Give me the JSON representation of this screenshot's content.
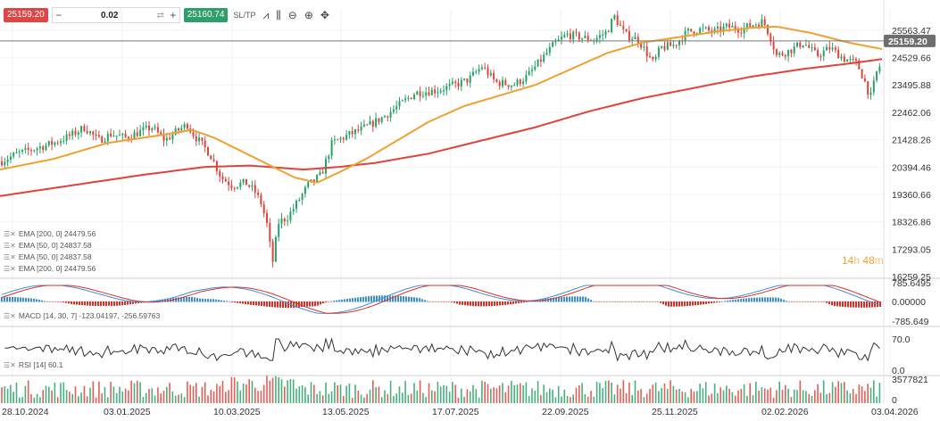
{
  "toolbar": {
    "sell_price": "25159.20",
    "buy_price": "25160.74",
    "quantity": "0.02",
    "minus": "−",
    "plus": "+",
    "swap": "⇄",
    "sltp_label": "SL/TP",
    "icons": [
      "line-chart-icon",
      "candles-icon",
      "zoom-out-icon",
      "zoom-in-icon",
      "crosshair-icon"
    ]
  },
  "indicators": {
    "main": [
      "EMA [200, 0] 24479.56",
      "EMA [50, 0] 24837.58",
      "EMA [50, 0] 24837.58",
      "EMA [200, 0] 24479.56"
    ],
    "macd": "MACD [14, 30, 7] -123.04197, -256.59763",
    "rsi": "RSI [14] 60.1"
  },
  "countdown": {
    "hours": "14",
    "h": "h",
    "minutes": "48",
    "m": "m"
  },
  "colors": {
    "up": "#26a269",
    "down": "#e0433a",
    "ema50": "#f0a030",
    "ema200": "#e0433a",
    "macd_pos": "#3d8fd1",
    "macd_neg": "#d93025",
    "rsi": "#333333",
    "price_tag": "#6e6e6e"
  },
  "chart_data": {
    "type": "candlestick",
    "symbol_price": "25159.20",
    "x_ticks": [
      "28.10.2024",
      "03.01.2025",
      "10.03.2025",
      "13.05.2025",
      "17.07.2025",
      "22.09.2025",
      "25.11.2025",
      "02.02.2026",
      "03.04.2026"
    ],
    "y_ticks": [
      "25563.47",
      "24529.66",
      "23495.88",
      "22462.06",
      "21428.26",
      "20394.46",
      "19360.66",
      "18326.86",
      "17293.05",
      "16259.25"
    ],
    "ylim": [
      16259.25,
      26200
    ],
    "price_anchor_points": [
      [
        0,
        20600
      ],
      [
        20,
        20900
      ],
      [
        40,
        21100
      ],
      [
        60,
        21300
      ],
      [
        80,
        21600
      ],
      [
        95,
        21900
      ],
      [
        110,
        21400
      ],
      [
        125,
        21650
      ],
      [
        140,
        21500
      ],
      [
        155,
        21700
      ],
      [
        170,
        21900
      ],
      [
        185,
        21400
      ],
      [
        200,
        21800
      ],
      [
        210,
        22000
      ],
      [
        215,
        21700
      ],
      [
        225,
        21300
      ],
      [
        235,
        20900
      ],
      [
        248,
        20000
      ],
      [
        260,
        19700
      ],
      [
        275,
        19800
      ],
      [
        285,
        19500
      ],
      [
        293,
        19000
      ],
      [
        300,
        18100
      ],
      [
        305,
        16700
      ],
      [
        312,
        18300
      ],
      [
        322,
        18500
      ],
      [
        332,
        19000
      ],
      [
        345,
        19700
      ],
      [
        360,
        20100
      ],
      [
        372,
        21300
      ],
      [
        390,
        21600
      ],
      [
        410,
        21900
      ],
      [
        430,
        22300
      ],
      [
        450,
        22800
      ],
      [
        465,
        23200
      ],
      [
        490,
        23300
      ],
      [
        510,
        23500
      ],
      [
        525,
        23700
      ],
      [
        540,
        24200
      ],
      [
        555,
        23600
      ],
      [
        575,
        23500
      ],
      [
        590,
        23800
      ],
      [
        605,
        24400
      ],
      [
        620,
        25000
      ],
      [
        635,
        25400
      ],
      [
        650,
        25300
      ],
      [
        665,
        25200
      ],
      [
        680,
        25500
      ],
      [
        688,
        26100
      ],
      [
        700,
        25400
      ],
      [
        715,
        25200
      ],
      [
        732,
        24300
      ],
      [
        740,
        24900
      ],
      [
        755,
        25000
      ],
      [
        770,
        25500
      ],
      [
        785,
        25600
      ],
      [
        800,
        25500
      ],
      [
        815,
        25700
      ],
      [
        830,
        25600
      ],
      [
        845,
        25800
      ],
      [
        855,
        25900
      ],
      [
        862,
        25400
      ],
      [
        870,
        24600
      ],
      [
        885,
        24800
      ],
      [
        900,
        25100
      ],
      [
        915,
        24600
      ],
      [
        930,
        24900
      ],
      [
        945,
        24500
      ],
      [
        960,
        24300
      ],
      [
        968,
        23700
      ],
      [
        975,
        23000
      ],
      [
        983,
        24100
      ],
      [
        992,
        24500
      ]
    ],
    "ema50_points": [
      [
        0,
        20300
      ],
      [
        60,
        20700
      ],
      [
        120,
        21300
      ],
      [
        180,
        21600
      ],
      [
        215,
        21800
      ],
      [
        240,
        21500
      ],
      [
        270,
        21000
      ],
      [
        300,
        20500
      ],
      [
        330,
        20000
      ],
      [
        355,
        19800
      ],
      [
        380,
        20200
      ],
      [
        410,
        20700
      ],
      [
        440,
        21300
      ],
      [
        480,
        22100
      ],
      [
        520,
        22700
      ],
      [
        560,
        23100
      ],
      [
        600,
        23500
      ],
      [
        640,
        24100
      ],
      [
        680,
        24700
      ],
      [
        720,
        25100
      ],
      [
        760,
        25300
      ],
      [
        800,
        25500
      ],
      [
        840,
        25650
      ],
      [
        870,
        25700
      ],
      [
        910,
        25450
      ],
      [
        950,
        25100
      ],
      [
        990,
        24840
      ]
    ],
    "ema200_points": [
      [
        0,
        19300
      ],
      [
        80,
        19700
      ],
      [
        160,
        20100
      ],
      [
        230,
        20400
      ],
      [
        280,
        20450
      ],
      [
        340,
        20300
      ],
      [
        380,
        20400
      ],
      [
        420,
        20550
      ],
      [
        480,
        20900
      ],
      [
        540,
        21400
      ],
      [
        600,
        21900
      ],
      [
        660,
        22500
      ],
      [
        720,
        23000
      ],
      [
        780,
        23400
      ],
      [
        840,
        23800
      ],
      [
        900,
        24100
      ],
      [
        950,
        24300
      ],
      [
        990,
        24480
      ]
    ],
    "macd_panel": {
      "y_ticks": [
        "785.6495",
        "0.00000",
        "-785.649"
      ],
      "label": "MACD [14, 30, 7] -123.04197, -256.59763"
    },
    "rsi_panel": {
      "y_ticks": [
        "70.0",
        "0.0"
      ],
      "label": "RSI [14] 60.1"
    },
    "volume_panel": {
      "y_ticks": [
        "3577821",
        "0"
      ]
    }
  }
}
